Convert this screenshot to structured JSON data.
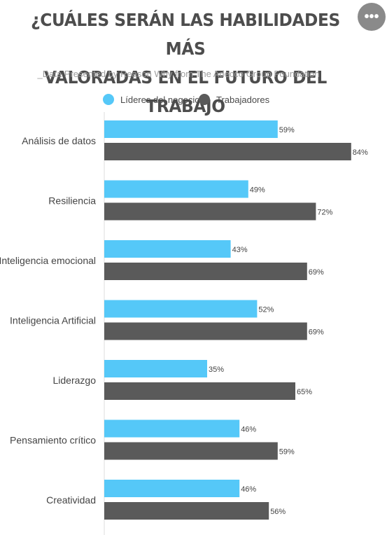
{
  "header": {
    "title_line1": "¿CUÁLES SERÁN LAS HABILIDADES MÁS",
    "title_line2": "VALORADAS EN EL FUTURO DEL TRABAJO",
    "subtitle": "_Data Presented by Reason Why from The Adecco Group Foundation",
    "menu_icon": "more-horizontal-icon",
    "menu_glyph": "•••"
  },
  "colors": {
    "series_leaders": "#55c8f8",
    "series_workers": "#5a5a5a",
    "axis": "#dddddd"
  },
  "chart_data": {
    "type": "bar",
    "orientation": "horizontal",
    "categories": [
      "Análisis de datos",
      "Resiliencia",
      "Inteligencia emocional",
      "Inteligencia Artificial",
      "Liderazgo",
      "Pensamiento crítico",
      "Creatividad"
    ],
    "series": [
      {
        "name": "Líderes del negocio",
        "values": [
          59,
          49,
          43,
          52,
          35,
          46,
          46
        ]
      },
      {
        "name": "Trabajadores",
        "values": [
          84,
          72,
          69,
          69,
          65,
          59,
          56
        ]
      }
    ],
    "value_suffix": "%",
    "xlim": [
      0,
      100
    ],
    "grid": false,
    "legend_position": "top"
  }
}
